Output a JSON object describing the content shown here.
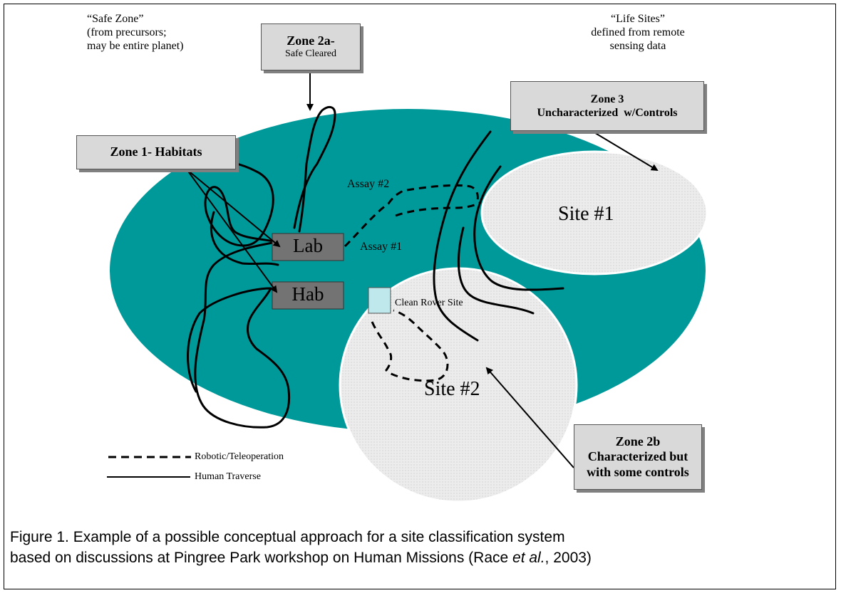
{
  "labels": {
    "safe_zone": [
      "“Safe Zone”",
      "(from precursors;",
      "may be entire planet)"
    ],
    "life_sites": [
      "“Life Sites”",
      "defined  from remote",
      "sensing data"
    ],
    "zone2a_title": "Zone 2a-",
    "zone2a_sub": "Safe Cleared",
    "zone1": "Zone 1- Habitats",
    "zone3_line1": "Zone 3",
    "zone3_line2": "Uncharacterized  w/Controls",
    "zone2b": [
      "Zone 2b",
      "Characterized but",
      "with some controls"
    ],
    "site1": "Site #1",
    "site2": "Site #2",
    "lab": "Lab",
    "hab": "Hab",
    "assay1": "Assay #1",
    "assay2": "Assay #2",
    "clean_rover": "Clean Rover Site"
  },
  "legend": {
    "robotic": "Robotic/Teleoperation",
    "human": "Human Traverse"
  },
  "colors": {
    "planet": "#009999",
    "site_fill": "#ececec",
    "box_fill": "#d9d9d9",
    "lab_fill": "#737373",
    "rover_fill": "#bfe8ec"
  },
  "caption": {
    "line1": "Figure 1. Example of a possible conceptual approach for a site classification system",
    "line2_before": "based on discussions at Pingree Park workshop on Human Missions (Race ",
    "line2_italic": "et al.",
    "line2_after": ", 2003)"
  }
}
